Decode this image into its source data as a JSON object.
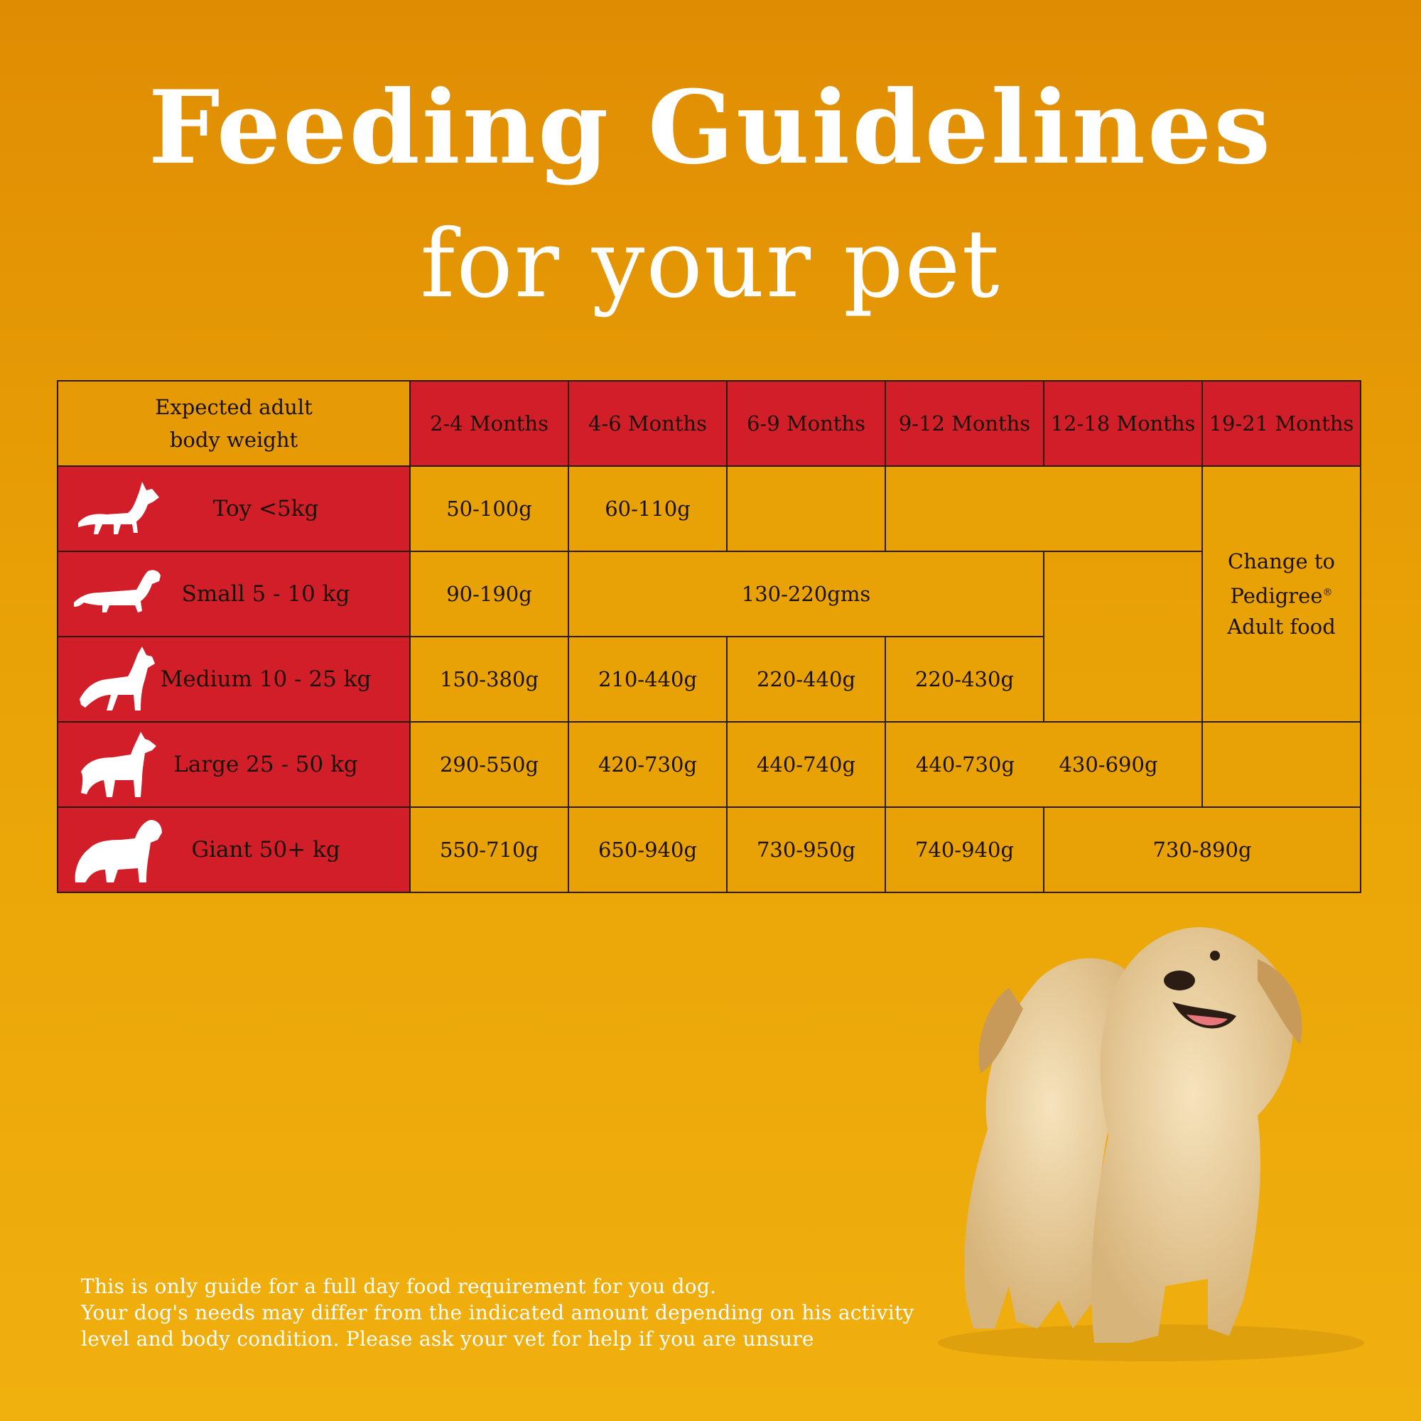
{
  "header": {
    "title": "Feeding Guidelines",
    "subtitle": "for your pet"
  },
  "table": {
    "weight_header_line1": "Expected adult",
    "weight_header_line2": "body weight",
    "age_columns": [
      "2-4 Months",
      "4-6 Months",
      "6-9 Months",
      "9-12 Months",
      "12-18 Months",
      "19-21 Months"
    ],
    "rows": [
      {
        "label": "Toy <5kg",
        "icon": "toy-dog-silhouette-icon",
        "values": [
          "50-100g",
          "60-110g",
          ""
        ]
      },
      {
        "label": "Small 5 - 10 kg",
        "icon": "dachshund-silhouette-icon",
        "values": [
          "90-190g",
          "130-220gms"
        ]
      },
      {
        "label": "Medium 10 - 25 kg",
        "icon": "medium-dog-silhouette-icon",
        "values": [
          "150-380g",
          "210-440g",
          "220-440g",
          "220-430g"
        ]
      },
      {
        "label": "Large 25 - 50 kg",
        "icon": "large-dog-silhouette-icon",
        "values": [
          "290-550g",
          "420-730g",
          "440-740g",
          "440-730g",
          "430-690g",
          ""
        ]
      },
      {
        "label": "Giant 50+ kg",
        "icon": "giant-dog-silhouette-icon",
        "values": [
          "550-710g",
          "650-940g",
          "730-950g",
          "740-940g",
          "730-890g"
        ]
      }
    ],
    "adult_note_line1": "Change to Pedigree",
    "adult_note_mark": "®",
    "adult_note_line2": "Adult food"
  },
  "footnote": {
    "line1": "This is only guide for a full day food requirement for you dog.",
    "line2": "Your dog's needs may differ from the indicated amount depending on his activity",
    "line3": "level and body condition. Please ask your vet for help if you are unsure"
  },
  "colors": {
    "background_top": "#e08c03",
    "background_bottom": "#f0b00e",
    "header_red": "#d21e28",
    "cell_orange": "#e9a206"
  }
}
